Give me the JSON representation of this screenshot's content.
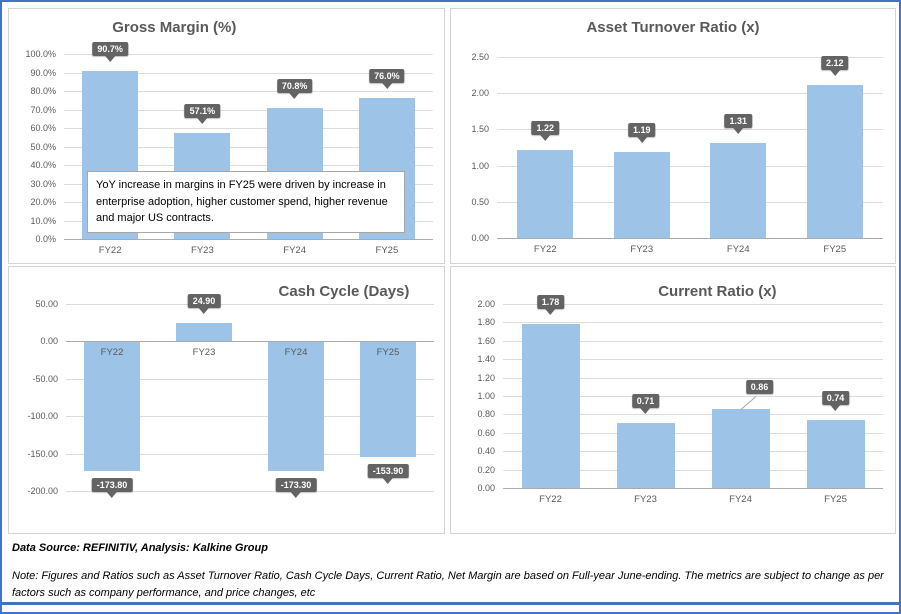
{
  "colors": {
    "bar": "#9DC3E6",
    "callout": "#636363",
    "outer_border": "#4472C4",
    "grid": "#DCDCDC",
    "axis_text": "#595959"
  },
  "footer": {
    "source": "Data Source: REFINITIV, Analysis: Kalkine Group",
    "note": "Note: Figures and Ratios such as Asset Turnover Ratio, Cash Cycle Days, Current Ratio, Net Margin are based on Full-year June-ending. The metrics are subject to change as per factors such as company performance, and price changes, etc"
  },
  "chart_data": [
    {
      "id": "gross-margin",
      "type": "bar",
      "title": "Gross Margin (%)",
      "categories": [
        "FY22",
        "FY23",
        "FY24",
        "FY25"
      ],
      "values": [
        90.7,
        57.1,
        70.8,
        76.0
      ],
      "value_labels": [
        "90.7%",
        "57.1%",
        "70.8%",
        "76.0%"
      ],
      "ylim": [
        0,
        100
      ],
      "yticks": [
        {
          "v": 100,
          "label": "100.0%"
        },
        {
          "v": 90,
          "label": "90.0%"
        },
        {
          "v": 80,
          "label": "80.0%"
        },
        {
          "v": 70,
          "label": "70.0%"
        },
        {
          "v": 60,
          "label": "60.0%"
        },
        {
          "v": 50,
          "label": "50.0%"
        },
        {
          "v": 40,
          "label": "40.0%"
        },
        {
          "v": 30,
          "label": "30.0%"
        },
        {
          "v": 20,
          "label": "20.0%"
        },
        {
          "v": 10,
          "label": "10.0%"
        },
        {
          "v": 0,
          "label": "0.0%"
        }
      ],
      "grid": true,
      "legend": false,
      "annotation": "YoY increase in margins in FY25 were driven by increase in enterprise adoption, higher customer spend, higher revenue and major US contracts."
    },
    {
      "id": "asset-turnover",
      "type": "bar",
      "title": "Asset Turnover Ratio (x)",
      "categories": [
        "FY22",
        "FY23",
        "FY24",
        "FY25"
      ],
      "values": [
        1.22,
        1.19,
        1.31,
        2.12
      ],
      "value_labels": [
        "1.22",
        "1.19",
        "1.31",
        "2.12"
      ],
      "ylim": [
        0,
        2.5
      ],
      "yticks": [
        {
          "v": 2.5,
          "label": "2.50"
        },
        {
          "v": 2.0,
          "label": "2.00"
        },
        {
          "v": 1.5,
          "label": "1.50"
        },
        {
          "v": 1.0,
          "label": "1.00"
        },
        {
          "v": 0.5,
          "label": "0.50"
        },
        {
          "v": 0,
          "label": "0.00"
        }
      ],
      "grid": true,
      "legend": false
    },
    {
      "id": "cash-cycle",
      "type": "bar",
      "title": "Cash Cycle (Days)",
      "categories": [
        "FY22",
        "FY23",
        "FY24",
        "FY25"
      ],
      "values": [
        -173.8,
        24.9,
        -173.3,
        -153.9
      ],
      "value_labels": [
        "-173.80",
        "24.90",
        "-173.30",
        "-153.90"
      ],
      "ylim": [
        -200,
        50
      ],
      "yticks": [
        {
          "v": 50,
          "label": "50.00"
        },
        {
          "v": 0,
          "label": "0.00"
        },
        {
          "v": -50,
          "label": "-50.00"
        },
        {
          "v": -100,
          "label": "-100.00"
        },
        {
          "v": -150,
          "label": "-150.00"
        },
        {
          "v": -200,
          "label": "-200.00"
        }
      ],
      "labels_at_zero": true,
      "grid": true,
      "legend": false
    },
    {
      "id": "current-ratio",
      "type": "bar",
      "title": "Current Ratio (x)",
      "categories": [
        "FY22",
        "FY23",
        "FY24",
        "FY25"
      ],
      "values": [
        1.78,
        0.71,
        0.86,
        0.74
      ],
      "value_labels": [
        "1.78",
        "0.71",
        "0.86",
        "0.74"
      ],
      "ylim": [
        0,
        2
      ],
      "yticks": [
        {
          "v": 2.0,
          "label": "2.00"
        },
        {
          "v": 1.8,
          "label": "1.80"
        },
        {
          "v": 1.6,
          "label": "1.60"
        },
        {
          "v": 1.4,
          "label": "1.40"
        },
        {
          "v": 1.2,
          "label": "1.20"
        },
        {
          "v": 1.0,
          "label": "1.00"
        },
        {
          "v": 0.8,
          "label": "0.80"
        },
        {
          "v": 0.6,
          "label": "0.60"
        },
        {
          "v": 0.4,
          "label": "0.40"
        },
        {
          "v": 0.2,
          "label": "0.20"
        },
        {
          "v": 0,
          "label": "0.00"
        }
      ],
      "callout_overrides": {
        "2": {
          "dx": 19,
          "no_arrow": true,
          "leader": true
        }
      },
      "grid": true,
      "legend": false
    }
  ]
}
